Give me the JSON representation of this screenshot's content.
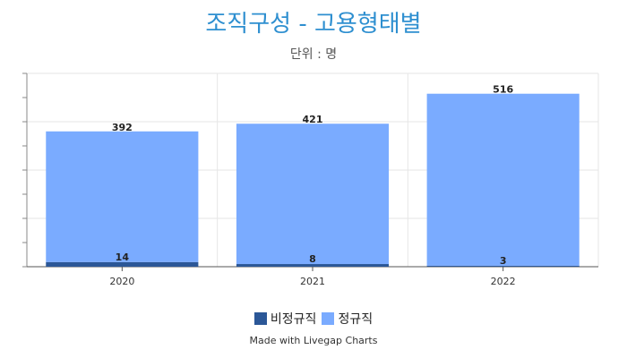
{
  "chart_data": {
    "type": "bar",
    "stacked": true,
    "title": "조직구성 - 고용형태별",
    "subtitle": "단위 : 명",
    "categories": [
      "2020",
      "2021",
      "2022"
    ],
    "series": [
      {
        "name": "비정규직",
        "color": "#2b5797",
        "values": [
          14,
          8,
          3
        ]
      },
      {
        "name": "정규직",
        "color": "#7aabff",
        "values": [
          392,
          421,
          516
        ]
      }
    ],
    "ylim": [
      0,
      580
    ],
    "grid": true,
    "legend": "bottom"
  },
  "footer": {
    "credit": "Made with Livegap Charts"
  }
}
